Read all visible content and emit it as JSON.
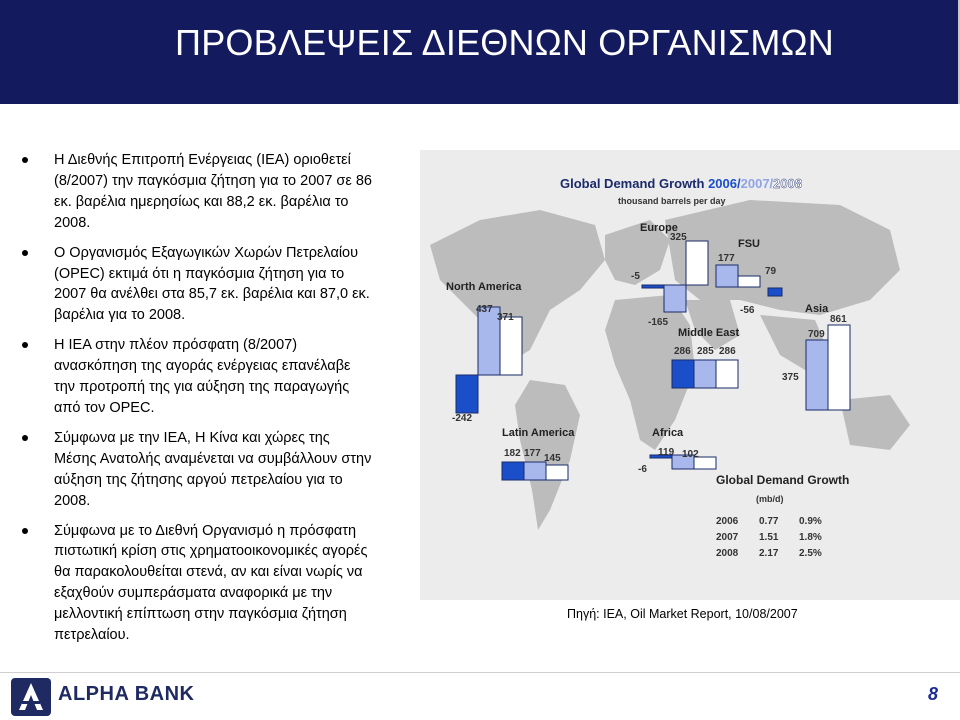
{
  "header": {
    "title": "ΠΡΟΒΛΕΨΕΙΣ ΔΙΕΘΝΩΝ ΟΡΓΑΝΙΣΜΩΝ"
  },
  "bullets": [
    "Η Διεθνής Επιτροπή Ενέργειας (IEA) οριοθετεί (8/2007) την παγκόσμια ζήτηση για το 2007 σε 86 εκ. βαρέλια ημερησίως και 88,2 εκ. βαρέλια το 2008.",
    "Ο Οργανισμός Εξαγωγικών Χωρών Πετρελαίου (OPEC) εκτιμά ότι η παγκόσμια ζήτηση για το 2007 θα ανέλθει στα 85,7 εκ. βαρέλια και 87,0 εκ. βαρέλια για το 2008.",
    "Η IEA στην πλέον πρόσφατη (8/2007) ανασκόπηση της αγοράς ενέργειας επανέλαβε την προτροπή της για αύξηση της παραγωγής από τον OPEC.",
    "Σύμφωνα με την IEA, Η Κίνα και χώρες της Μέσης Ανατολής αναμένεται να συμβάλλουν στην αύξηση της ζήτησης αργού πετρελαίου για το 2008.",
    "Σύμφωνα με το Διεθνή Οργανισμό η πρόσφατη πιστωτική κρίση στις χρηματοοικονομικές αγορές θα παρακολουθείται στενά, αν και είναι νωρίς να εξαχθούν συμπεράσματα αναφορικά με την μελλοντική επίπτωση στην παγκόσμια ζήτηση πετρελαίου."
  ],
  "figure": {
    "title_main": "Global Demand Growth ",
    "title_y1": "2006/",
    "title_y2": "2007/",
    "title_y3": "2008",
    "subtitle": "thousand barrels per day",
    "colors": {
      "y2006": "#1a4fc9",
      "y2007": "#a9b8ec",
      "y2008": "#ffffff",
      "outline": "#1a2a6a"
    },
    "regions": [
      {
        "name": "North America",
        "labels": [
          "-242",
          "437",
          "371"
        ]
      },
      {
        "name": "Europe",
        "labels": [
          "-5",
          "-165",
          "325"
        ]
      },
      {
        "name": "FSU",
        "labels": [
          "177",
          "79"
        ]
      },
      {
        "name": "Asia",
        "labels": [
          "-56",
          "709",
          "861"
        ]
      },
      {
        "name": "Middle East",
        "labels": [
          "286",
          "285",
          "286"
        ]
      },
      {
        "name": "Latin America",
        "labels": [
          "182",
          "177",
          "145"
        ]
      },
      {
        "name": "Africa",
        "labels": [
          "-6",
          "119",
          "102"
        ]
      }
    ],
    "extra_labels": [
      "375"
    ],
    "table": {
      "title": "Global Demand Growth",
      "unit": "(mb/d)",
      "rows": [
        {
          "year": "2006",
          "mbd": "0.77",
          "pct": "0.9%"
        },
        {
          "year": "2007",
          "mbd": "1.51",
          "pct": "1.8%"
        },
        {
          "year": "2008",
          "mbd": "2.17",
          "pct": "2.5%"
        }
      ]
    }
  },
  "source": "Πηγή: IEA, Oil Market Report, 10/08/2007",
  "footer": {
    "bank_name": "ALPHA BANK",
    "page_number": "8"
  }
}
